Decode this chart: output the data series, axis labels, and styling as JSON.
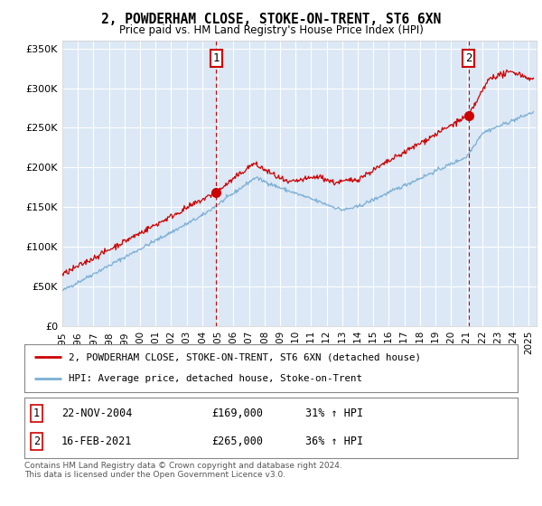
{
  "title": "2, POWDERHAM CLOSE, STOKE-ON-TRENT, ST6 6XN",
  "subtitle": "Price paid vs. HM Land Registry's House Price Index (HPI)",
  "ylim": [
    0,
    360000
  ],
  "yticks": [
    0,
    50000,
    100000,
    150000,
    200000,
    250000,
    300000,
    350000
  ],
  "ytick_labels": [
    "£0",
    "£50K",
    "£100K",
    "£150K",
    "£200K",
    "£250K",
    "£300K",
    "£350K"
  ],
  "fig_bg": "#ffffff",
  "plot_bg": "#dce8f5",
  "grid_color": "#ffffff",
  "red_color": "#cc0000",
  "blue_color": "#7bafd4",
  "sale1_year": 2004.9,
  "sale1_price": 169000,
  "sale2_year": 2021.12,
  "sale2_price": 265000,
  "legend_line1": "2, POWDERHAM CLOSE, STOKE-ON-TRENT, ST6 6XN (detached house)",
  "legend_line2": "HPI: Average price, detached house, Stoke-on-Trent",
  "table_row1": [
    "1",
    "22-NOV-2004",
    "£169,000",
    "31% ↑ HPI"
  ],
  "table_row2": [
    "2",
    "16-FEB-2021",
    "£265,000",
    "36% ↑ HPI"
  ],
  "footnote": "Contains HM Land Registry data © Crown copyright and database right 2024.\nThis data is licensed under the Open Government Licence v3.0."
}
